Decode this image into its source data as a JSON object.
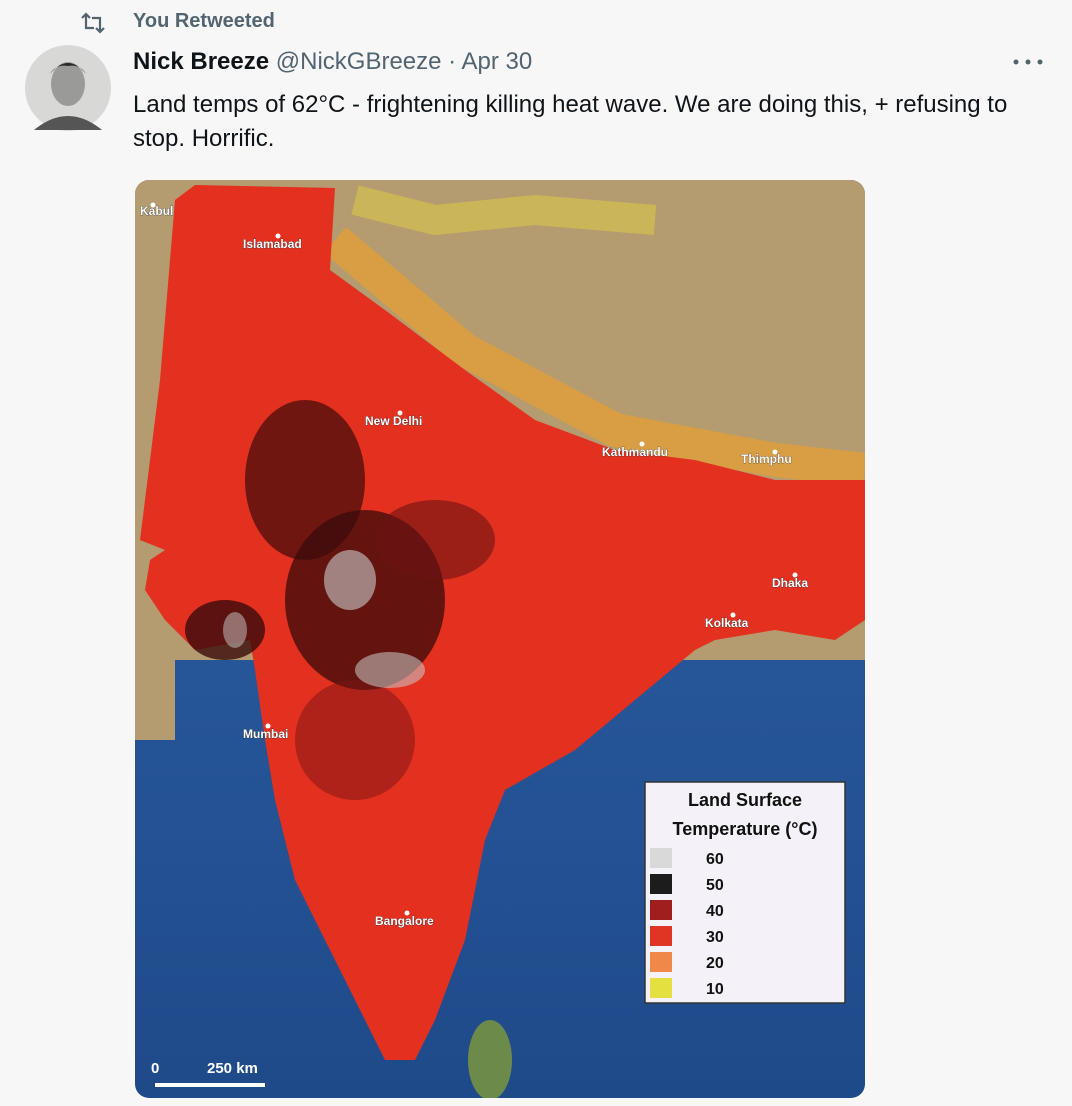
{
  "retweet_label": "You Retweeted",
  "tweet": {
    "name": "Nick Breeze",
    "handle": "@NickGBreeze",
    "separator": "·",
    "date": "Apr 30",
    "text": "Land temps of 62°C - frightening killing heat wave. We are doing this, + refusing to stop. Horrific."
  },
  "map": {
    "cities": [
      "Kabul",
      "Islamabad",
      "New Delhi",
      "Kathmandu",
      "Thimphu",
      "Dhaka",
      "Kolkata",
      "Mumbai",
      "Bangalore"
    ],
    "legend": {
      "title_lines": [
        "Land Surface",
        "Temperature (°C)"
      ],
      "items": [
        {
          "label": "60",
          "color": "#d9d9d9"
        },
        {
          "label": "50",
          "color": "#1c1c1c"
        },
        {
          "label": "40",
          "color": "#a01e1e"
        },
        {
          "label": "30",
          "color": "#e03424"
        },
        {
          "label": "20",
          "color": "#f0884a"
        },
        {
          "label": "10",
          "color": "#e4e040"
        }
      ]
    },
    "scale": [
      "0",
      "250 km"
    ]
  }
}
